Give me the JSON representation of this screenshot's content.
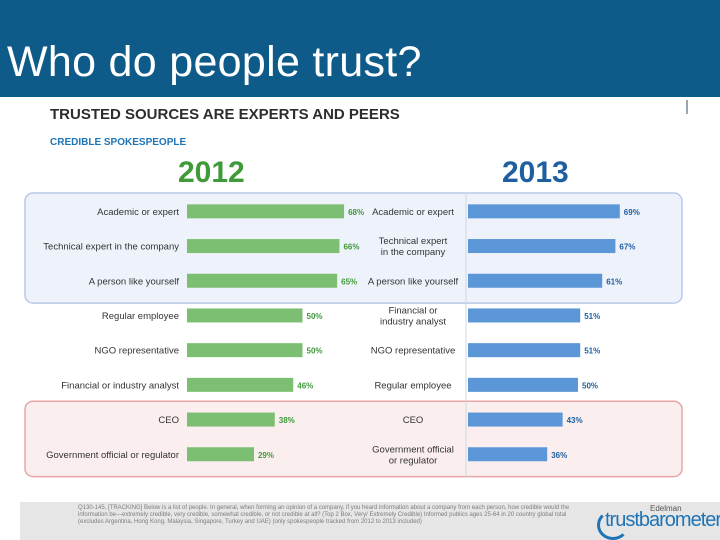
{
  "header": {
    "title": "Who do people trust?"
  },
  "chart_data": {
    "type": "bar",
    "title": "TRUSTED SOURCES ARE EXPERTS AND PEERS",
    "subtitle": "CREDIBLE SPOKESPEOPLE",
    "orientation": "horizontal",
    "panels": [
      {
        "year": "2012",
        "color": "#7cbf72",
        "label_color": "#3f9a3a",
        "categories": [
          "Academic or expert",
          "Technical expert in the company",
          "A person like yourself",
          "Regular employee",
          "NGO representative",
          "Financial or industry analyst",
          "CEO",
          "Government official or regulator"
        ],
        "values": [
          68,
          66,
          65,
          50,
          50,
          46,
          38,
          29
        ],
        "value_labels": [
          "68%",
          "66%",
          "65%",
          "50%",
          "50%",
          "46%",
          "38%",
          "29%"
        ]
      },
      {
        "year": "2013",
        "color": "#5b96d6",
        "label_color": "#1f5fa0",
        "categories": [
          "Academic or expert",
          "Technical expert in the company",
          "A person like yourself",
          "Financial or industry analyst",
          "NGO representative",
          "Regular employee",
          "CEO",
          "Government official or regulator"
        ],
        "values": [
          69,
          67,
          61,
          51,
          51,
          50,
          43,
          36
        ],
        "value_labels": [
          "69%",
          "67%",
          "61%",
          "51%",
          "51%",
          "50%",
          "43%",
          "36%"
        ]
      }
    ],
    "groups": [
      {
        "name": "experts-and-peers",
        "rows": [
          0,
          1,
          2
        ],
        "color": "#eef2fb",
        "border": "#b9c9ea"
      },
      {
        "name": "ceo-and-government",
        "rows": [
          6,
          7
        ],
        "color": "#fbeeee",
        "border": "#e8a6a6"
      }
    ],
    "xlim": [
      0,
      100
    ]
  },
  "footer": {
    "footnote": "Q130-145. [TRACKING] Below is a list of people. In general, when forming an opinion of a company, if you heard information about a company from each person, how credible would the information be—extremely credible, very credible, somewhat credible, or not credible at all? (Top 2 Box, Very/ Extremely Credible) Informed publics ages 25-64 in 20 country global total (excludes Argentina, Hong Kong, Malaysia, Singapore, Turkey and UAE) (only spokespeople tracked from 2012 to 2013 included)",
    "logo_brand": "Edelman",
    "logo_word": "trustbarometer"
  }
}
